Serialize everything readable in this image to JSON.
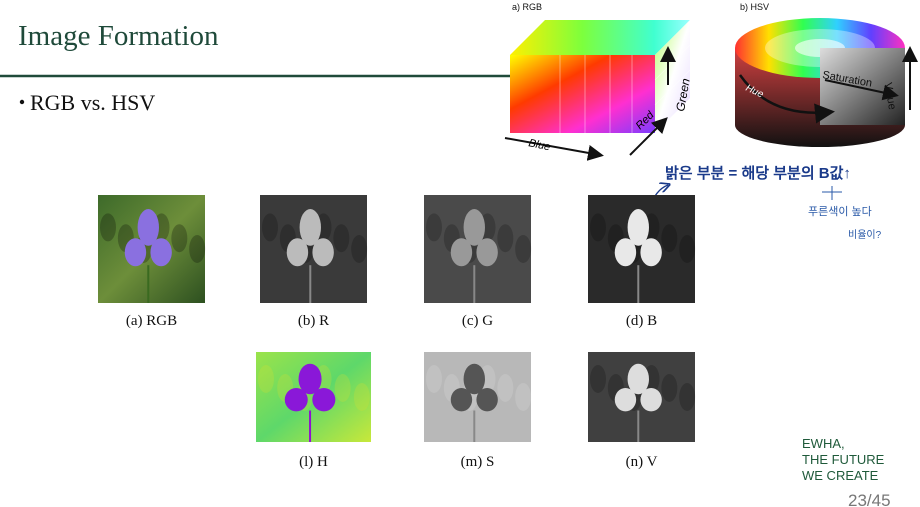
{
  "header": {
    "title": "Image Formation"
  },
  "bullets": [
    "RGB vs. HSV"
  ],
  "figure": {
    "rgb_label": "a) RGB",
    "hsv_label": "b) HSV",
    "cube_axes": [
      "Blue",
      "Red",
      "Green"
    ],
    "cylinder_axes": [
      "Hue",
      "Saturation",
      "Value"
    ]
  },
  "annotation": {
    "line1": "밝은 부분 = 해당 부분의 B값↑",
    "line2": "푸른색이 높다",
    "line3": "비율이?"
  },
  "panels": [
    {
      "caption": "(a) RGB"
    },
    {
      "caption": "(b) R"
    },
    {
      "caption": "(c) G"
    },
    {
      "caption": "(d) B"
    },
    {
      "caption": "(l) H"
    },
    {
      "caption": "(m) S"
    },
    {
      "caption": "(n) V"
    }
  ],
  "logo": {
    "lines": [
      "EWHA,",
      "THE FUTURE",
      "WE CREATE"
    ]
  },
  "page": "23/45"
}
